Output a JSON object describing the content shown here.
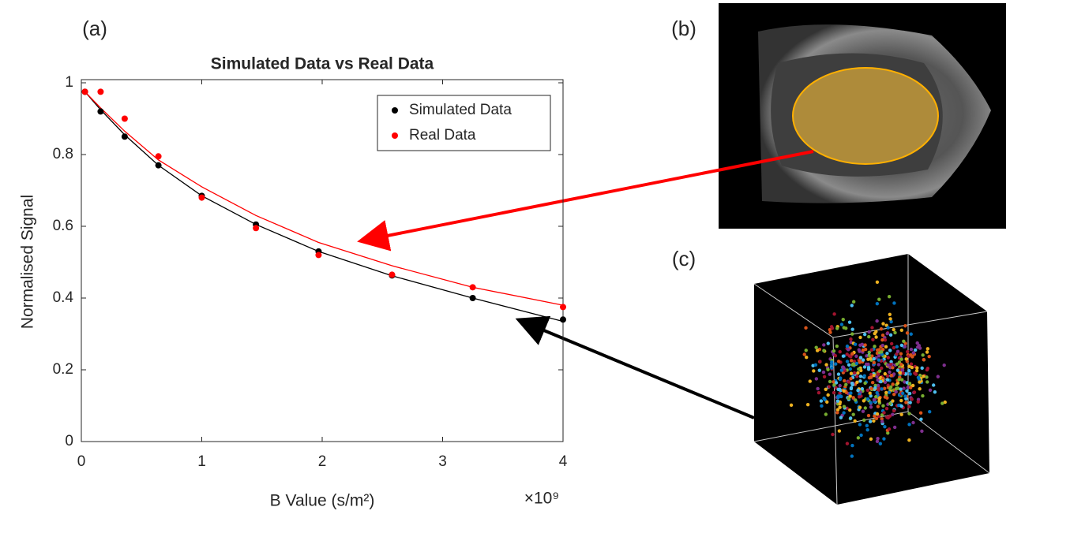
{
  "panel_labels": [
    "(a)",
    "(b)",
    "(c)"
  ],
  "chart_data": {
    "type": "scatter",
    "title": "Simulated Data vs Real Data",
    "x_label": "B Value (s/m²)",
    "x_exponent_label": "×10⁹",
    "y_label": "Normalised Signal",
    "x": [
      0.03,
      0.16,
      0.36,
      0.64,
      1.0,
      1.45,
      1.97,
      2.58,
      3.25,
      4.0
    ],
    "series": [
      {
        "name": "Simulated Data",
        "color": "#000000",
        "values": [
          0.975,
          0.92,
          0.85,
          0.77,
          0.685,
          0.605,
          0.53,
          0.463,
          0.4,
          0.34
        ]
      },
      {
        "name": "Real Data",
        "color": "#ff0000",
        "values": [
          0.975,
          0.975,
          0.9,
          0.795,
          0.68,
          0.595,
          0.52,
          0.465,
          0.43,
          0.375
        ]
      }
    ],
    "fit_lines": [
      {
        "color": "#000000",
        "values": [
          0.975,
          0.925,
          0.855,
          0.77,
          0.685,
          0.605,
          0.53,
          0.462,
          0.4,
          0.335
        ]
      },
      {
        "color": "#ff0000",
        "values": [
          0.975,
          0.93,
          0.865,
          0.785,
          0.71,
          0.63,
          0.555,
          0.49,
          0.43,
          0.38
        ]
      }
    ],
    "xlim": [
      0,
      4
    ],
    "xticks": [
      0,
      1,
      2,
      3,
      4
    ],
    "ylim": [
      0,
      1
    ],
    "yticks": [
      0,
      0.2,
      0.4,
      0.6,
      0.8,
      1
    ],
    "legend": "northeast"
  }
}
